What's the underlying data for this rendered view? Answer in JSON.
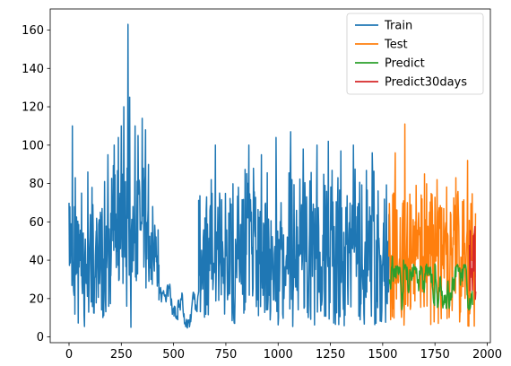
{
  "chart_data": {
    "type": "line",
    "title": "",
    "xlabel": "",
    "ylabel": "",
    "xlim": [
      -90,
      2015
    ],
    "ylim": [
      -3,
      171
    ],
    "xticks": [
      0,
      250,
      500,
      750,
      1000,
      1250,
      1500,
      1750,
      2000
    ],
    "yticks": [
      0,
      20,
      40,
      60,
      80,
      100,
      120,
      140,
      160
    ],
    "grid": false,
    "legend": {
      "placement": "top-right",
      "entries": [
        "Train",
        "Test",
        "Predict",
        "Predict30days"
      ]
    },
    "series": [
      {
        "name": "Train",
        "color": "#1f77b4",
        "x_range": [
          0,
          1530
        ],
        "segments": [
          {
            "x": [
              0,
              130
            ],
            "low": 5,
            "high": 70,
            "mode": "wide",
            "spikes": [
              [
                10,
                59
              ],
              [
                15,
                110
              ],
              [
                30,
                83
              ],
              [
                60,
                75
              ],
              [
                90,
                86
              ],
              [
                110,
                78
              ]
            ]
          },
          {
            "x": [
              130,
              200
            ],
            "low": 10,
            "high": 70,
            "mode": "wide",
            "spikes": [
              [
                150,
                65
              ],
              [
                170,
                81
              ],
              [
                185,
                95
              ]
            ]
          },
          {
            "x": [
              200,
              270
            ],
            "low": 24,
            "high": 90,
            "mode": "wide",
            "spikes": [
              [
                215,
                100
              ],
              [
                235,
                104
              ],
              [
                250,
                110
              ],
              [
                262,
                120
              ]
            ]
          },
          {
            "x": [
              270,
              300
            ],
            "low": 5,
            "high": 100,
            "mode": "wide",
            "spikes": [
              [
                282,
                163
              ],
              [
                290,
                125
              ],
              [
                296,
                5
              ]
            ]
          },
          {
            "x": [
              300,
              380
            ],
            "low": 25,
            "high": 90,
            "mode": "wide",
            "spikes": [
              [
                315,
                110
              ],
              [
                330,
                105
              ],
              [
                350,
                114
              ],
              [
                365,
                108
              ]
            ]
          },
          {
            "x": [
              380,
              430
            ],
            "low": 25,
            "high": 60,
            "mode": "wide",
            "spikes": [
              [
                400,
                68
              ]
            ]
          },
          {
            "x": [
              430,
              520
            ],
            "low": 8,
            "high": 28,
            "mode": "narrow",
            "spikes": []
          },
          {
            "x": [
              520,
              620
            ],
            "low": 4,
            "high": 24,
            "mode": "narrow",
            "spikes": []
          },
          {
            "x": [
              620,
              770
            ],
            "low": 10,
            "high": 75,
            "mode": "wide",
            "spikes": [
              [
                650,
                62
              ],
              [
                680,
                82
              ],
              [
                700,
                100
              ],
              [
                720,
                75
              ]
            ]
          },
          {
            "x": [
              770,
              1530
            ],
            "low": 5,
            "high": 88,
            "mode": "wide",
            "spikes": [
              [
                860,
                100
              ],
              [
                920,
                95
              ],
              [
                990,
                104
              ],
              [
                1060,
                107
              ],
              [
                1120,
                98
              ],
              [
                1185,
                100
              ],
              [
                1240,
                102
              ],
              [
                1300,
                97
              ],
              [
                1360,
                100
              ],
              [
                1450,
                96
              ]
            ]
          }
        ]
      },
      {
        "name": "Test",
        "color": "#ff7f0e",
        "x_range": [
          1530,
          1945
        ],
        "segments": [
          {
            "x": [
              1530,
              1945
            ],
            "low": 5,
            "high": 80,
            "mode": "wide",
            "spikes": [
              [
                1560,
                96
              ],
              [
                1605,
                111
              ],
              [
                1700,
                85
              ],
              [
                1760,
                82
              ],
              [
                1850,
                83
              ],
              [
                1905,
                92
              ]
            ]
          }
        ]
      },
      {
        "name": "Predict",
        "color": "#2ca02c",
        "x_range": [
          1532,
          1930
        ],
        "segments": [
          {
            "x": [
              1532,
              1930
            ],
            "low": 14,
            "high": 38,
            "mode": "narrow",
            "spikes": [
              [
                1545,
                42
              ],
              [
                1600,
                40
              ],
              [
                1750,
                38
              ]
            ]
          }
        ]
      },
      {
        "name": "Predict30days",
        "color": "#d62728",
        "x_range": [
          1915,
          1945
        ],
        "segments": [
          {
            "x": [
              1915,
              1945
            ],
            "low": 14,
            "high": 58,
            "mode": "wide",
            "spikes": [
              [
                1925,
                59
              ],
              [
                1935,
                50
              ]
            ]
          }
        ]
      }
    ]
  }
}
